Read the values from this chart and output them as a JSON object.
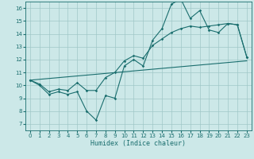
{
  "xlabel": "Humidex (Indice chaleur)",
  "xlim": [
    -0.5,
    23.5
  ],
  "ylim": [
    6.5,
    16.5
  ],
  "xticks": [
    0,
    1,
    2,
    3,
    4,
    5,
    6,
    7,
    8,
    9,
    10,
    11,
    12,
    13,
    14,
    15,
    16,
    17,
    18,
    19,
    20,
    21,
    22,
    23
  ],
  "yticks": [
    7,
    8,
    9,
    10,
    11,
    12,
    13,
    14,
    15,
    16
  ],
  "bg_color": "#cce8e8",
  "line_color": "#1a6e6e",
  "grid_color": "#a0c8c8",
  "line1_x": [
    0,
    1,
    2,
    3,
    4,
    5,
    6,
    7,
    8,
    9,
    10,
    11,
    12,
    13,
    14,
    15,
    16,
    17,
    18,
    19,
    20,
    21,
    22,
    23
  ],
  "line1_y": [
    10.4,
    10.0,
    9.3,
    9.5,
    9.3,
    9.5,
    8.0,
    7.3,
    9.2,
    9.0,
    11.5,
    12.0,
    11.5,
    13.5,
    14.4,
    16.3,
    16.7,
    15.2,
    15.8,
    14.3,
    14.1,
    14.8,
    14.7,
    12.2
  ],
  "line2_x": [
    0,
    1,
    2,
    3,
    4,
    5,
    6,
    7,
    8,
    9,
    10,
    11,
    12,
    13,
    14,
    15,
    16,
    17,
    18,
    19,
    20,
    21,
    22,
    23
  ],
  "line2_y": [
    10.4,
    10.1,
    9.5,
    9.7,
    9.6,
    10.2,
    9.6,
    9.6,
    10.6,
    11.0,
    11.9,
    12.3,
    12.1,
    13.1,
    13.6,
    14.1,
    14.4,
    14.6,
    14.5,
    14.6,
    14.7,
    14.8,
    14.7,
    12.2
  ],
  "line3_x": [
    0,
    23
  ],
  "line3_y": [
    10.4,
    11.9
  ]
}
